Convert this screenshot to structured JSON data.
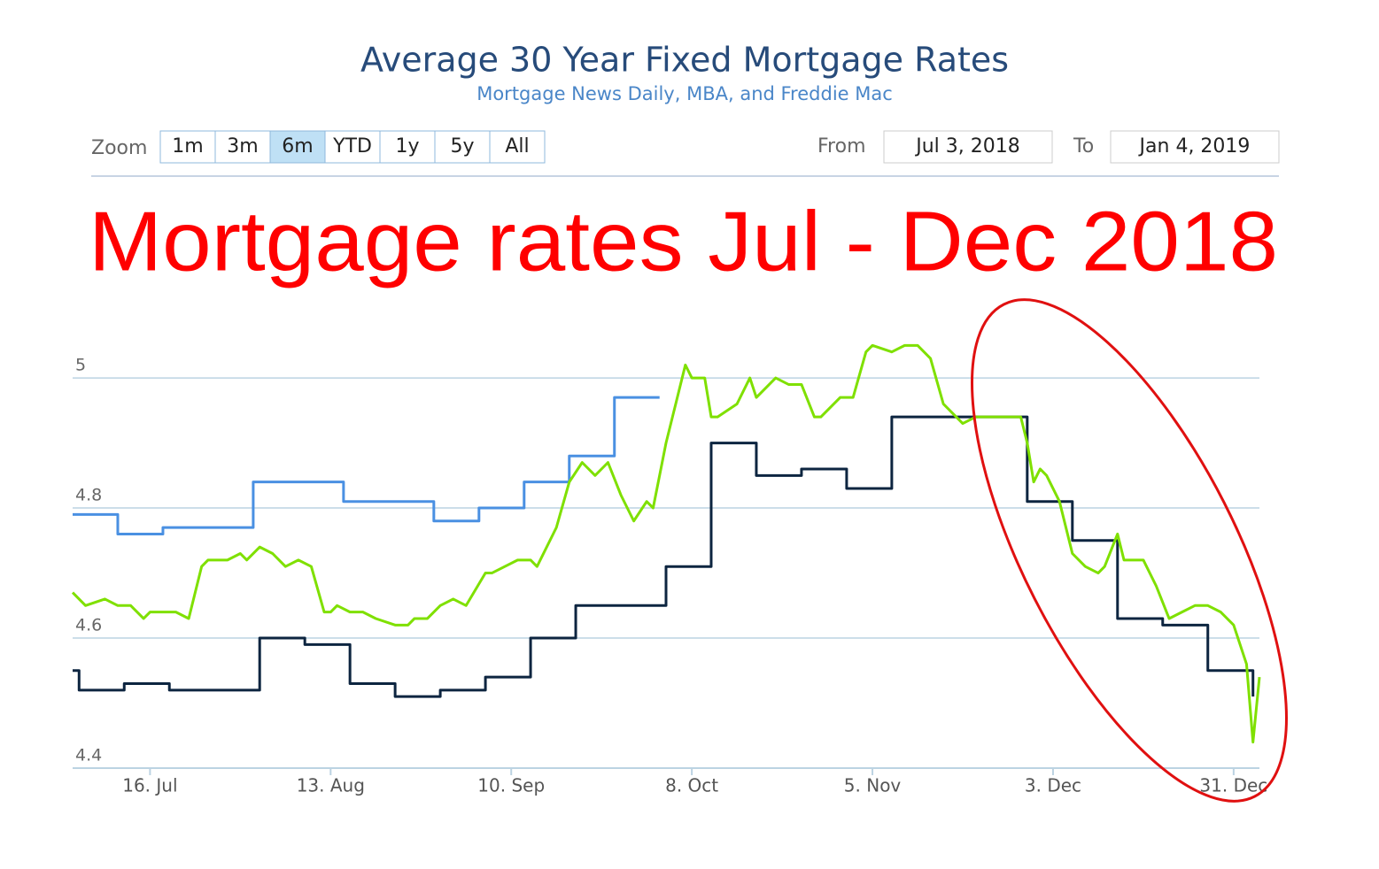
{
  "ui": {
    "zoom_label": "Zoom",
    "zoom_buttons": [
      "1m",
      "3m",
      "6m",
      "YTD",
      "1y",
      "5y",
      "All"
    ],
    "selected": 2,
    "from_label": "From",
    "from": "Jul 3, 2018",
    "to_label": "To",
    "to": "Jan 4, 2019"
  },
  "chart_data": {
    "type": "line",
    "title": "Average 30 Year Fixed Mortgage Rates",
    "subtitle": "Mortgage News Daily, MBA, and Freddie Mac",
    "annotation": "Mortgage rates Jul - Dec 2018",
    "xlim": [
      "4. Jul",
      "4. Jan"
    ],
    "xticks": [
      "16. Jul",
      "13. Aug",
      "10. Sep",
      "8. Oct",
      "5. Nov",
      "3. Dec",
      "31. Dec"
    ],
    "ylim": [
      4.4,
      5.06
    ],
    "yticks": [
      4.4,
      4.6,
      4.8,
      5
    ],
    "grid": true,
    "series": [
      {
        "color": "#4a90e2",
        "step": true,
        "x": [
          "4. Jul",
          "11. Jul",
          "18. Jul",
          "1. Aug",
          "15. Aug",
          "29. Aug",
          "5. Sep",
          "12. Sep",
          "19. Sep",
          "26. Sep",
          "3. Oct"
        ],
        "values": [
          4.79,
          4.76,
          4.77,
          4.84,
          4.81,
          4.78,
          4.8,
          4.84,
          4.88,
          4.97,
          4.97
        ]
      },
      {
        "color": "#0d2540",
        "step": true,
        "x": [
          "4. Jul",
          "5. Jul",
          "12. Jul",
          "19. Jul",
          "2. Aug",
          "9. Aug",
          "16. Aug",
          "23. Aug",
          "30. Aug",
          "6. Sep",
          "13. Sep",
          "20. Sep",
          "4. Oct",
          "11. Oct",
          "18. Oct",
          "25. Oct",
          "1. Nov",
          "8. Nov",
          "29. Nov",
          "6. Dec",
          "13. Dec",
          "20. Dec",
          "27. Dec",
          "3. Jan"
        ],
        "values": [
          4.55,
          4.52,
          4.53,
          4.52,
          4.6,
          4.59,
          4.53,
          4.51,
          4.52,
          4.54,
          4.6,
          4.65,
          4.71,
          4.9,
          4.85,
          4.86,
          4.83,
          4.94,
          4.81,
          4.75,
          4.63,
          4.62,
          4.55,
          4.51
        ]
      },
      {
        "color": "#7fe000",
        "step": false,
        "x": [
          "4. Jul",
          "6. Jul",
          "9. Jul",
          "11. Jul",
          "13. Jul",
          "15. Jul",
          "16. Jul",
          "20. Jul",
          "22. Jul",
          "24. Jul",
          "25. Jul",
          "28. Jul",
          "30. Jul",
          "31. Jul",
          "2. Aug",
          "4. Aug",
          "6. Aug",
          "8. Aug",
          "10. Aug",
          "12. Aug",
          "13. Aug",
          "14. Aug",
          "16. Aug",
          "18. Aug",
          "20. Aug",
          "23. Aug",
          "25. Aug",
          "26. Aug",
          "28. Aug",
          "30. Aug",
          "1. Sep",
          "3. Sep",
          "6. Sep",
          "7. Sep",
          "11. Sep",
          "13. Sep",
          "14. Sep",
          "17. Sep",
          "19. Sep",
          "21. Sep",
          "23. Sep",
          "25. Sep",
          "27. Sep",
          "29. Sep",
          "1. Oct",
          "2. Oct",
          "4. Oct",
          "5. Oct",
          "7. Oct",
          "8. Oct",
          "10. Oct",
          "11. Oct",
          "12. Oct",
          "15. Oct",
          "17. Oct",
          "18. Oct",
          "20. Oct",
          "21. Oct",
          "23. Oct",
          "25. Oct",
          "27. Oct",
          "28. Oct",
          "31. Oct",
          "2. Nov",
          "4. Nov",
          "5. Nov",
          "8. Nov",
          "10. Nov",
          "12. Nov",
          "14. Nov",
          "16. Nov",
          "19. Nov",
          "21. Nov",
          "28. Nov",
          "29. Nov",
          "30. Nov",
          "1. Dec",
          "2. Dec",
          "4. Dec",
          "6. Dec",
          "8. Dec",
          "10. Dec",
          "11. Dec",
          "13. Dec",
          "14. Dec",
          "17. Dec",
          "19. Dec",
          "21. Dec",
          "23. Dec",
          "25. Dec",
          "27. Dec",
          "29. Dec",
          "31. Dec",
          "2. Jan",
          "3. Jan",
          "4. Jan"
        ],
        "values": [
          4.67,
          4.65,
          4.66,
          4.65,
          4.65,
          4.63,
          4.64,
          4.64,
          4.63,
          4.71,
          4.72,
          4.72,
          4.73,
          4.72,
          4.74,
          4.73,
          4.71,
          4.72,
          4.71,
          4.64,
          4.64,
          4.65,
          4.64,
          4.64,
          4.63,
          4.62,
          4.62,
          4.63,
          4.63,
          4.65,
          4.66,
          4.65,
          4.7,
          4.7,
          4.72,
          4.72,
          4.71,
          4.77,
          4.84,
          4.87,
          4.85,
          4.87,
          4.82,
          4.78,
          4.81,
          4.8,
          4.9,
          4.94,
          5.02,
          5.0,
          5.0,
          4.94,
          4.94,
          4.96,
          5.0,
          4.97,
          4.99,
          5.0,
          4.99,
          4.99,
          4.94,
          4.94,
          4.97,
          4.97,
          5.04,
          5.05,
          5.04,
          5.05,
          5.05,
          5.03,
          4.96,
          4.93,
          4.94,
          4.94,
          4.9,
          4.84,
          4.86,
          4.85,
          4.81,
          4.73,
          4.71,
          4.7,
          4.71,
          4.76,
          4.72,
          4.72,
          4.68,
          4.63,
          4.64,
          4.65,
          4.65,
          4.64,
          4.62,
          4.56,
          4.44,
          4.54
        ]
      }
    ]
  }
}
